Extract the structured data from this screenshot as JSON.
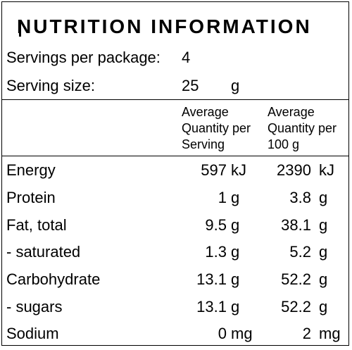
{
  "panel": {
    "title": "NUTRITION INFORMATION",
    "servings_per_package_label": "Servings per package:",
    "servings_per_package_value": "4",
    "serving_size_label": "Serving size:",
    "serving_size_value": "25",
    "serving_size_unit": "g"
  },
  "columns": {
    "per_serving": [
      "Average",
      "Quantity per",
      "Serving"
    ],
    "per_100g": [
      "Average",
      "Quantity per",
      "100 g"
    ]
  },
  "rows": [
    {
      "name": "Energy",
      "serving": "597",
      "serving_unit": "kJ",
      "per100": "2390",
      "per100_unit": "kJ"
    },
    {
      "name": "Protein",
      "serving": "1",
      "serving_unit": "g",
      "per100": "3.8",
      "per100_unit": "g"
    },
    {
      "name": "Fat, total",
      "serving": "9.5",
      "serving_unit": "g",
      "per100": "38.1",
      "per100_unit": "g"
    },
    {
      "name": "- saturated",
      "serving": "1.3",
      "serving_unit": "g",
      "per100": "5.2",
      "per100_unit": "g"
    },
    {
      "name": "Carbohydrate",
      "serving": "13.1",
      "serving_unit": "g",
      "per100": "52.2",
      "per100_unit": "g"
    },
    {
      "name": "- sugars",
      "serving": "13.1",
      "serving_unit": "g",
      "per100": "52.2",
      "per100_unit": "g"
    },
    {
      "name": "Sodium",
      "serving": "0",
      "serving_unit": "mg",
      "per100": "2",
      "per100_unit": "mg"
    }
  ]
}
